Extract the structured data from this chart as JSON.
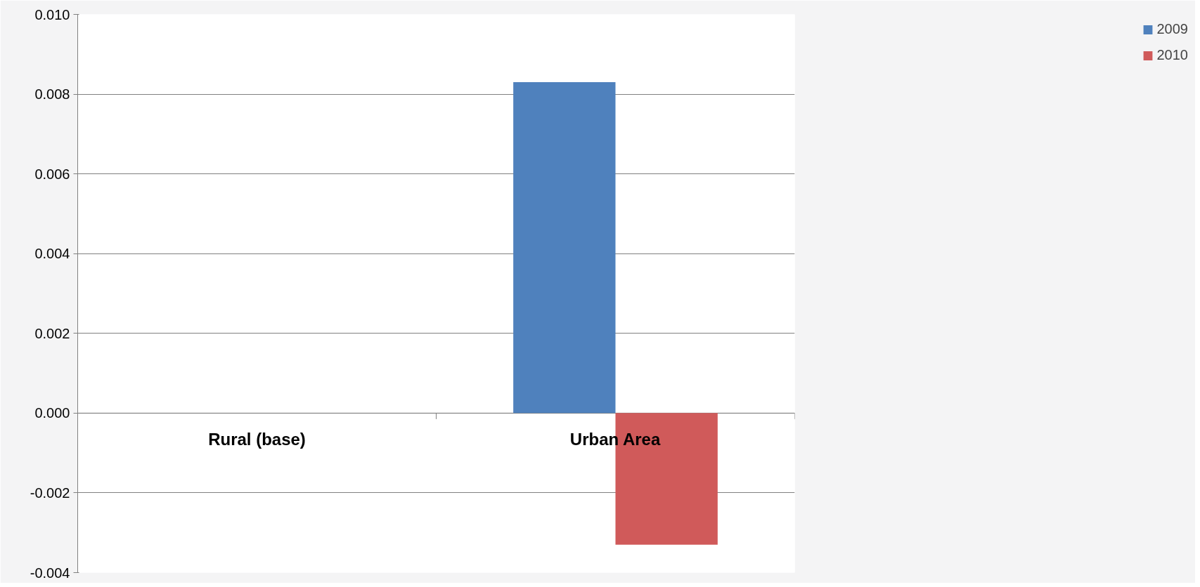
{
  "chart_data": {
    "type": "bar",
    "categories": [
      "Rural (base)",
      "Urban Area"
    ],
    "series": [
      {
        "name": "2009",
        "color": "#4f81bd",
        "values": [
          0,
          0.0083
        ]
      },
      {
        "name": "2010",
        "color": "#d05a5a",
        "values": [
          0,
          -0.0033
        ]
      }
    ],
    "ylim": [
      -0.004,
      0.01
    ],
    "yticks": [
      {
        "value": -0.004,
        "label": "-0.004"
      },
      {
        "value": -0.002,
        "label": "-0.002"
      },
      {
        "value": 0,
        "label": "0.000"
      },
      {
        "value": 0.002,
        "label": "0.002"
      },
      {
        "value": 0.004,
        "label": "0.004"
      },
      {
        "value": 0.006,
        "label": "0.006"
      },
      {
        "value": 0.008,
        "label": "0.008"
      },
      {
        "value": 0.01,
        "label": "0.010"
      }
    ],
    "grid": "y",
    "legend": "right"
  }
}
